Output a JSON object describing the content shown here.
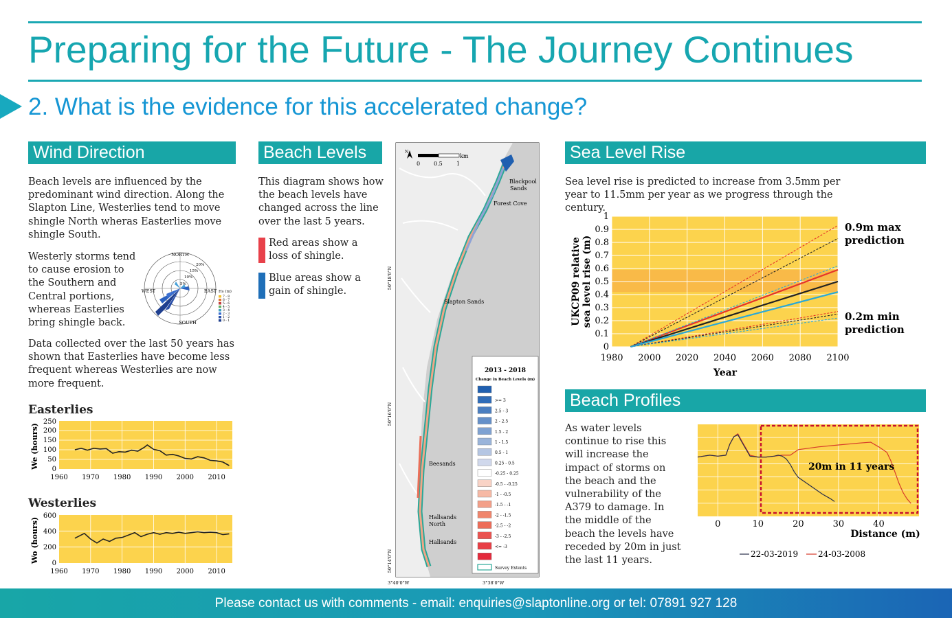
{
  "title": "Preparing for the Future - The Journey Continues",
  "subtitle": "2. What is the evidence for this accelerated change?",
  "wind": {
    "header": "Wind Direction",
    "p1": "Beach levels are influenced by the predominant wind direction. Along the Slapton Line, Westerlies tend to move shingle North wheras Easterlies move shingle South.",
    "p2": "Westerly storms tend to cause erosion to the Southern and Central portions, whereas Easterlies bring shingle back.",
    "p3": "Data collected over the last 50 years has shown that Easterlies have become less frequent whereas Westerlies are now more frequent.",
    "rose": {
      "north": "NORTH",
      "south": "SOUTH",
      "east": "EAST",
      "west": "WEST",
      "rings": [
        "5%",
        "10%",
        "15%",
        "20%"
      ],
      "legend_title": "Hs (m)",
      "legend": [
        "7 - 8",
        "6 - 7",
        "5 - 6",
        "4 - 5",
        "3 - 4",
        "2 - 3",
        "1 - 2",
        "0 - 1"
      ]
    }
  },
  "easterlies": {
    "title": "Easterlies",
    "ylabel": "We (hours)",
    "xticks": [
      "1960",
      "1970",
      "1980",
      "1990",
      "2000",
      "2010"
    ],
    "yticks": [
      "0",
      "50",
      "100",
      "150",
      "200",
      "250"
    ]
  },
  "westerlies": {
    "title": "Westerlies",
    "ylabel": "Wo (hours)",
    "xticks": [
      "1960",
      "1970",
      "1980",
      "1990",
      "2000",
      "2010"
    ],
    "yticks": [
      "0",
      "200",
      "400",
      "600"
    ]
  },
  "beach": {
    "header": "Beach Levels",
    "p1": "This diagram shows how the beach levels have changed across the line over the last 5 years.",
    "red": "Red areas show a loss of shingle.",
    "blue": "Blue areas show a gain of shingle.",
    "red_color": "#e8414a",
    "blue_color": "#1f6fb8",
    "map": {
      "scale_unit": "km",
      "scale_labels": [
        "0",
        "0.5",
        "1"
      ],
      "north": "N",
      "places": [
        "Blackpool Sands",
        "Forest Cove",
        "Slapton Sands",
        "Beesands",
        "Hallsands North",
        "Hallsands"
      ],
      "lat_labels": [
        "50°18'0\"N",
        "50°16'0\"N",
        "50°14'0\"N"
      ],
      "lon_labels": [
        "3°40'0\"W",
        "3°38'0\"W"
      ],
      "legend_title": "2013 - 2018",
      "legend_subtitle": "Change in Beach Levels (m)",
      "legend": [
        {
          "label": "",
          "color": "#1f5fb0"
        },
        {
          "label": ">= 3",
          "color": "#2f6cb8"
        },
        {
          "label": "2.5 - 3",
          "color": "#4a7ec0"
        },
        {
          "label": "2 - 2.5",
          "color": "#6590c9"
        },
        {
          "label": "1.5 - 2",
          "color": "#7fa2d2"
        },
        {
          "label": "1 - 1.5",
          "color": "#9ab4da"
        },
        {
          "label": "0.5 - 1",
          "color": "#b5c6e3"
        },
        {
          "label": "0.25 - 0.5",
          "color": "#d0d8ec"
        },
        {
          "label": "-0.25 - 0.25",
          "color": "#ffffff"
        },
        {
          "label": "-0.5 - -0.25",
          "color": "#f9d3c6"
        },
        {
          "label": "-1 - -0.5",
          "color": "#f6b9a5"
        },
        {
          "label": "-1.5 - -1",
          "color": "#f39f88"
        },
        {
          "label": "-2 - -1.5",
          "color": "#f0856c"
        },
        {
          "label": "-2.5 - -2",
          "color": "#ed6c58"
        },
        {
          "label": "-3 - -2.5",
          "color": "#ea5350"
        },
        {
          "label": "<= -3",
          "color": "#e83e45"
        },
        {
          "label": "",
          "color": "#e42a3c"
        }
      ],
      "extent_label": "Survey Extents"
    }
  },
  "sea": {
    "header": "Sea Level Rise",
    "p1": "Sea level rise is predicted to increase from 3.5mm per year to 11.5mm per year as we progress through the century.",
    "max_label_1": "0.9m max",
    "max_label_2": "prediction",
    "min_label_1": "0.2m min",
    "min_label_2": "prediction"
  },
  "profiles": {
    "header": "Beach Profiles",
    "p1": "As water levels continue to rise this will increase the impact of storms on the beach and the vulnerability of the A379 to damage. In the middle of the beach the levels have receded by 20m in just the last 11 years.",
    "annotation": "20m in 11 years",
    "legend_2019": "22-03-2019",
    "legend_2008": "24-03-2008",
    "color_2019": "#2a2f4a",
    "color_2008": "#d63a2a"
  },
  "chart_data": [
    {
      "type": "line",
      "title": "Easterlies",
      "ylabel": "We (hours)",
      "xlim": [
        1960,
        2015
      ],
      "ylim": [
        0,
        250
      ],
      "x": [
        1965,
        1967,
        1969,
        1971,
        1973,
        1975,
        1977,
        1979,
        1981,
        1983,
        1985,
        1987,
        1988,
        1990,
        1992,
        1994,
        1996,
        1998,
        2000,
        2002,
        2004,
        2006,
        2008,
        2010,
        2012,
        2014
      ],
      "y": [
        100,
        108,
        98,
        108,
        104,
        106,
        82,
        90,
        88,
        98,
        93,
        112,
        125,
        102,
        95,
        72,
        76,
        68,
        55,
        52,
        64,
        58,
        45,
        42,
        36,
        18
      ]
    },
    {
      "type": "line",
      "title": "Westerlies",
      "ylabel": "Wo (hours)",
      "xlim": [
        1960,
        2015
      ],
      "ylim": [
        0,
        600
      ],
      "x": [
        1965,
        1968,
        1970,
        1972,
        1974,
        1976,
        1978,
        1980,
        1982,
        1984,
        1986,
        1988,
        1990,
        1992,
        1994,
        1996,
        1998,
        2000,
        2002,
        2004,
        2006,
        2008,
        2010,
        2012,
        2014
      ],
      "y": [
        310,
        370,
        300,
        250,
        300,
        270,
        310,
        320,
        350,
        380,
        330,
        360,
        380,
        360,
        380,
        370,
        385,
        370,
        380,
        390,
        380,
        385,
        380,
        355,
        365
      ]
    },
    {
      "type": "line",
      "xlabel": "Year",
      "ylabel": "UKCP09 relative sea level rise (m)",
      "xlim": [
        1980,
        2100
      ],
      "ylim": [
        0,
        1
      ],
      "xticks": [
        1980,
        2000,
        2020,
        2040,
        2060,
        2080,
        2100
      ],
      "yticks": [
        0,
        0.1,
        0.2,
        0.3,
        0.4,
        0.5,
        0.6,
        0.7,
        0.8,
        0.9,
        1
      ],
      "band": [
        0.42,
        0.59
      ],
      "x": [
        1990,
        2100
      ],
      "series": [
        {
          "color": "#e5332a",
          "style": "solid",
          "values": [
            0,
            0.59
          ]
        },
        {
          "color": "#222222",
          "style": "solid",
          "values": [
            0,
            0.5
          ]
        },
        {
          "color": "#29a8d8",
          "style": "solid",
          "values": [
            0,
            0.42
          ]
        },
        {
          "color": "#e5332a",
          "style": "dashed",
          "values": [
            0,
            0.93
          ]
        },
        {
          "color": "#e5332a",
          "style": "dashed",
          "values": [
            0,
            0.27
          ]
        },
        {
          "color": "#222222",
          "style": "dashed",
          "values": [
            0,
            0.83
          ]
        },
        {
          "color": "#222222",
          "style": "dashed",
          "values": [
            0,
            0.25
          ]
        },
        {
          "color": "#29a8d8",
          "style": "dashed",
          "values": [
            0,
            0.62
          ]
        },
        {
          "color": "#29a8d8",
          "style": "dashed",
          "values": [
            0,
            0.22
          ]
        }
      ]
    },
    {
      "type": "line",
      "xlabel": "Distance (m)",
      "xlim": [
        -5,
        50
      ],
      "xticks": [
        0,
        10,
        20,
        30,
        40
      ],
      "series": [
        {
          "name": "22-03-2019",
          "x": [
            -5,
            -2,
            0,
            2,
            3,
            4,
            5,
            6,
            8,
            10,
            12,
            14,
            15,
            16,
            17,
            18,
            19,
            20,
            22,
            24,
            26,
            28,
            29
          ],
          "y": [
            6.4,
            6.6,
            6.5,
            6.6,
            7.8,
            8.6,
            8.8,
            8.0,
            6.5,
            6.4,
            6.4,
            6.5,
            6.6,
            6.5,
            6.2,
            5.6,
            4.8,
            4.2,
            3.6,
            3.0,
            2.4,
            1.9,
            1.6
          ]
        },
        {
          "name": "24-03-2008",
          "x": [
            -5,
            -2,
            0,
            2,
            3,
            4,
            5,
            6,
            8,
            10,
            12,
            14,
            16,
            18,
            20,
            25,
            30,
            35,
            38,
            40,
            42,
            43,
            44,
            45,
            46,
            47,
            48
          ],
          "y": [
            6.4,
            6.6,
            6.5,
            6.6,
            7.8,
            8.6,
            8.9,
            8.1,
            6.6,
            6.4,
            6.4,
            6.5,
            6.6,
            6.6,
            7.2,
            7.5,
            7.7,
            7.9,
            8.0,
            7.5,
            6.9,
            6.0,
            4.8,
            3.6,
            2.6,
            1.9,
            1.4
          ]
        }
      ]
    }
  ]
}
